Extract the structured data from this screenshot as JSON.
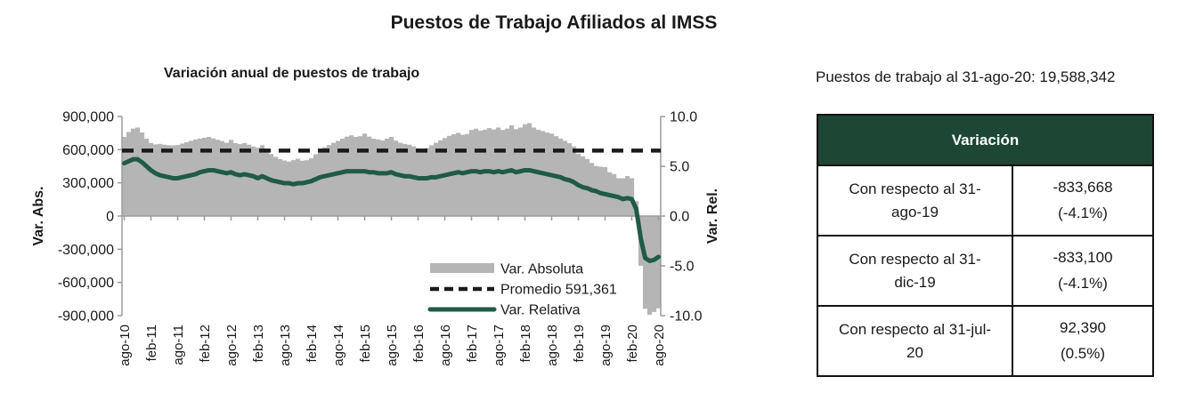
{
  "page": {
    "title": "Puestos de Trabajo Afiliados al IMSS"
  },
  "summary": {
    "text": "Puestos de trabajo al 31-ago-20: 19,588,342"
  },
  "colors": {
    "bar": "#b5b5b5",
    "average_line": "#1a1a1a",
    "relative_line": "#1f5b45",
    "axis": "#9b9b9b",
    "table_header_bg": "#1d4635",
    "table_header_text": "#ffffff"
  },
  "chart_data": {
    "type": "bar",
    "title": "Variación anual de puestos de trabajo",
    "x_start": "ago-10",
    "x_end": "ago-20",
    "frequency": "monthly",
    "x_tick_labels": [
      "ago-10",
      "feb-11",
      "ago-11",
      "feb-12",
      "ago-12",
      "feb-13",
      "ago-13",
      "feb-14",
      "ago-14",
      "feb-15",
      "ago-15",
      "feb-16",
      "ago-16",
      "feb-17",
      "ago-17",
      "feb-18",
      "ago-18",
      "feb-19",
      "ago-19",
      "feb-20",
      "ago-20"
    ],
    "y_left": {
      "label": "Var. Abs.",
      "min": -900000,
      "max": 900000,
      "tick_labels": [
        "900,000",
        "600,000",
        "300,000",
        "0",
        "-300,000",
        "-600,000",
        "-900,000"
      ],
      "tick_values": [
        900000,
        600000,
        300000,
        0,
        -300000,
        -600000,
        -900000
      ]
    },
    "y_right": {
      "label": "Var. Rel.",
      "min": -10,
      "max": 10,
      "tick_labels": [
        "10.0",
        "5.0",
        "0.0",
        "-5.0",
        "-10.0"
      ],
      "tick_values": [
        10,
        5,
        0,
        -5,
        -10
      ]
    },
    "average": {
      "label": "Promedio 591,361",
      "value": 591361
    },
    "legend": [
      {
        "label": "Var. Absoluta",
        "swatch": "bar"
      },
      {
        "label": "Promedio 591,361",
        "swatch": "dashed"
      },
      {
        "label": "Var. Relativa",
        "swatch": "line"
      }
    ],
    "series": [
      {
        "name": "Var. Absoluta",
        "type": "bar",
        "axis": "left",
        "values": [
          715000,
          760000,
          790000,
          800000,
          755000,
          700000,
          660000,
          648000,
          652000,
          645000,
          640000,
          638000,
          642000,
          655000,
          668000,
          680000,
          692000,
          700000,
          708000,
          715000,
          702000,
          690000,
          678000,
          662000,
          688000,
          660000,
          650000,
          660000,
          645000,
          628000,
          618000,
          640000,
          602000,
          560000,
          535000,
          515000,
          502000,
          492000,
          505000,
          518000,
          500000,
          505000,
          522000,
          558000,
          598000,
          622000,
          642000,
          662000,
          680000,
          700000,
          718000,
          730000,
          715000,
          722000,
          745000,
          718000,
          700000,
          692000,
          684000,
          700000,
          715000,
          682000,
          662000,
          652000,
          645000,
          630000,
          612000,
          600000,
          615000,
          640000,
          662000,
          685000,
          705000,
          725000,
          740000,
          752000,
          735000,
          742000,
          778000,
          790000,
          772000,
          780000,
          795000,
          782000,
          800000,
          778000,
          790000,
          820000,
          785000,
          800000,
          830000,
          840000,
          800000,
          780000,
          768000,
          755000,
          745000,
          722000,
          700000,
          680000,
          658000,
          630000,
          562000,
          540000,
          516000,
          480000,
          452000,
          446000,
          442000,
          396000,
          380000,
          342000,
          342000,
          362000,
          342000,
          134000,
          -449000,
          -838000,
          -892000,
          -867000,
          -833668
        ]
      },
      {
        "name": "Var. Relativa",
        "type": "line",
        "axis": "right",
        "values": [
          5.3,
          5.5,
          5.7,
          5.7,
          5.4,
          5.0,
          4.6,
          4.3,
          4.1,
          4.0,
          3.9,
          3.8,
          3.8,
          3.9,
          4.0,
          4.1,
          4.2,
          4.4,
          4.5,
          4.6,
          4.6,
          4.5,
          4.4,
          4.3,
          4.4,
          4.2,
          4.1,
          4.2,
          4.1,
          4.0,
          3.8,
          4.0,
          3.8,
          3.6,
          3.5,
          3.4,
          3.3,
          3.3,
          3.2,
          3.3,
          3.3,
          3.4,
          3.5,
          3.7,
          3.9,
          4.0,
          4.1,
          4.2,
          4.3,
          4.4,
          4.5,
          4.5,
          4.5,
          4.5,
          4.5,
          4.4,
          4.4,
          4.3,
          4.3,
          4.3,
          4.4,
          4.2,
          4.1,
          4.0,
          4.0,
          3.9,
          3.8,
          3.8,
          3.8,
          3.9,
          3.9,
          4.0,
          4.1,
          4.2,
          4.3,
          4.4,
          4.3,
          4.4,
          4.5,
          4.5,
          4.4,
          4.5,
          4.5,
          4.4,
          4.5,
          4.4,
          4.5,
          4.6,
          4.4,
          4.5,
          4.6,
          4.6,
          4.5,
          4.4,
          4.3,
          4.2,
          4.1,
          4.0,
          3.9,
          3.7,
          3.6,
          3.4,
          3.1,
          2.9,
          2.8,
          2.6,
          2.5,
          2.3,
          2.2,
          2.1,
          2.0,
          1.9,
          1.7,
          1.8,
          1.7,
          0.7,
          -2.2,
          -4.2,
          -4.5,
          -4.4,
          -4.1
        ]
      }
    ]
  },
  "table": {
    "header": "Variación",
    "rows": [
      {
        "label": "Con respecto al 31-ago-19",
        "label_lines": [
          "Con respecto al 31-",
          "ago-19"
        ],
        "value": "-833,668",
        "pct": "(-4.1%)"
      },
      {
        "label": "Con respecto al 31-dic-19",
        "label_lines": [
          "Con respecto al 31-",
          "dic-19"
        ],
        "value": "-833,100",
        "pct": "(-4.1%)"
      },
      {
        "label": "Con respecto al 31-jul-20",
        "label_lines": [
          "Con respecto al 31-jul-",
          "20"
        ],
        "value": "92,390",
        "pct": "(0.5%)"
      }
    ]
  }
}
